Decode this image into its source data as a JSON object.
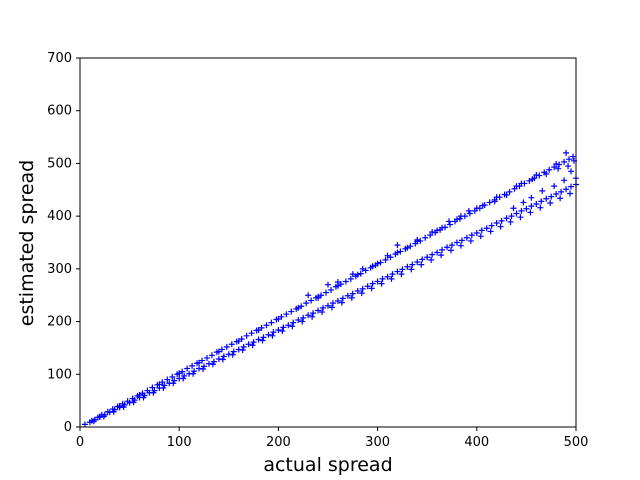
{
  "chart_data": {
    "type": "scatter",
    "title": "",
    "xlabel": "actual spread",
    "ylabel": "estimated spread",
    "xlim": [
      0,
      500
    ],
    "ylim": [
      0,
      700
    ],
    "xticks": [
      "0",
      "100",
      "200",
      "300",
      "400",
      "500"
    ],
    "yticks": [
      "0",
      "100",
      "200",
      "300",
      "400",
      "500",
      "600",
      "700"
    ],
    "grid": false,
    "legend": "none",
    "marker": "plus",
    "color": "#0000ff",
    "series": [
      {
        "values": [
          [
            5,
            5
          ],
          [
            10,
            9
          ],
          [
            15,
            14
          ],
          [
            20,
            19
          ],
          [
            25,
            23
          ],
          [
            30,
            28
          ],
          [
            35,
            33
          ],
          [
            40,
            37
          ],
          [
            45,
            42
          ],
          [
            50,
            46
          ],
          [
            55,
            51
          ],
          [
            60,
            56
          ],
          [
            65,
            60
          ],
          [
            70,
            65
          ],
          [
            75,
            69
          ],
          [
            80,
            74
          ],
          [
            85,
            79
          ],
          [
            90,
            83
          ],
          [
            95,
            88
          ],
          [
            100,
            92
          ],
          [
            105,
            97
          ],
          [
            110,
            101
          ],
          [
            115,
            106
          ],
          [
            120,
            111
          ],
          [
            125,
            115
          ],
          [
            130,
            120
          ],
          [
            135,
            124
          ],
          [
            140,
            129
          ],
          [
            145,
            134
          ],
          [
            150,
            138
          ],
          [
            155,
            143
          ],
          [
            160,
            147
          ],
          [
            165,
            152
          ],
          [
            170,
            157
          ],
          [
            175,
            161
          ],
          [
            180,
            166
          ],
          [
            185,
            170
          ],
          [
            190,
            175
          ],
          [
            195,
            180
          ],
          [
            200,
            184
          ],
          [
            205,
            189
          ],
          [
            210,
            193
          ],
          [
            215,
            198
          ],
          [
            220,
            203
          ],
          [
            225,
            207
          ],
          [
            230,
            212
          ],
          [
            235,
            216
          ],
          [
            240,
            221
          ],
          [
            245,
            226
          ],
          [
            250,
            230
          ],
          [
            255,
            235
          ],
          [
            260,
            239
          ],
          [
            265,
            244
          ],
          [
            270,
            249
          ],
          [
            275,
            253
          ],
          [
            280,
            258
          ],
          [
            285,
            262
          ],
          [
            290,
            267
          ],
          [
            295,
            272
          ],
          [
            300,
            276
          ],
          [
            305,
            281
          ],
          [
            310,
            285
          ],
          [
            315,
            290
          ],
          [
            320,
            295
          ],
          [
            325,
            299
          ],
          [
            330,
            304
          ],
          [
            335,
            308
          ],
          [
            340,
            313
          ],
          [
            345,
            318
          ],
          [
            350,
            322
          ],
          [
            355,
            327
          ],
          [
            360,
            331
          ],
          [
            365,
            336
          ],
          [
            370,
            341
          ],
          [
            375,
            345
          ],
          [
            380,
            350
          ],
          [
            385,
            354
          ],
          [
            390,
            359
          ],
          [
            395,
            364
          ],
          [
            400,
            368
          ],
          [
            405,
            373
          ],
          [
            410,
            377
          ],
          [
            415,
            382
          ],
          [
            420,
            387
          ],
          [
            425,
            391
          ],
          [
            430,
            396
          ],
          [
            435,
            400
          ],
          [
            440,
            405
          ],
          [
            445,
            410
          ],
          [
            450,
            414
          ],
          [
            455,
            419
          ],
          [
            460,
            423
          ],
          [
            465,
            428
          ],
          [
            470,
            433
          ],
          [
            475,
            437
          ],
          [
            480,
            442
          ],
          [
            485,
            446
          ],
          [
            490,
            451
          ],
          [
            495,
            456
          ],
          [
            500,
            460
          ],
          [
            12,
            12
          ],
          [
            18,
            18
          ],
          [
            22,
            23
          ],
          [
            28,
            29
          ],
          [
            33,
            34
          ],
          [
            38,
            39
          ],
          [
            43,
            44
          ],
          [
            48,
            49
          ],
          [
            53,
            54
          ],
          [
            58,
            59
          ],
          [
            63,
            64
          ],
          [
            68,
            69
          ],
          [
            73,
            75
          ],
          [
            78,
            80
          ],
          [
            83,
            85
          ],
          [
            88,
            90
          ],
          [
            93,
            95
          ],
          [
            98,
            100
          ],
          [
            103,
            105
          ],
          [
            108,
            111
          ],
          [
            113,
            116
          ],
          [
            118,
            121
          ],
          [
            123,
            126
          ],
          [
            128,
            131
          ],
          [
            133,
            136
          ],
          [
            138,
            142
          ],
          [
            143,
            147
          ],
          [
            148,
            152
          ],
          [
            153,
            157
          ],
          [
            158,
            162
          ],
          [
            163,
            167
          ],
          [
            168,
            173
          ],
          [
            173,
            178
          ],
          [
            178,
            183
          ],
          [
            183,
            188
          ],
          [
            188,
            193
          ],
          [
            193,
            198
          ],
          [
            198,
            204
          ],
          [
            203,
            209
          ],
          [
            208,
            214
          ],
          [
            213,
            219
          ],
          [
            218,
            224
          ],
          [
            223,
            229
          ],
          [
            228,
            235
          ],
          [
            233,
            240
          ],
          [
            238,
            245
          ],
          [
            243,
            250
          ],
          [
            248,
            255
          ],
          [
            253,
            260
          ],
          [
            258,
            266
          ],
          [
            263,
            271
          ],
          [
            268,
            276
          ],
          [
            273,
            281
          ],
          [
            278,
            286
          ],
          [
            283,
            291
          ],
          [
            288,
            297
          ],
          [
            293,
            302
          ],
          [
            298,
            307
          ],
          [
            303,
            312
          ],
          [
            308,
            317
          ],
          [
            313,
            322
          ],
          [
            318,
            328
          ],
          [
            323,
            333
          ],
          [
            328,
            338
          ],
          [
            333,
            343
          ],
          [
            338,
            348
          ],
          [
            343,
            353
          ],
          [
            348,
            359
          ],
          [
            353,
            364
          ],
          [
            358,
            369
          ],
          [
            363,
            374
          ],
          [
            368,
            379
          ],
          [
            373,
            384
          ],
          [
            378,
            390
          ],
          [
            383,
            395
          ],
          [
            388,
            400
          ],
          [
            393,
            405
          ],
          [
            398,
            410
          ],
          [
            403,
            415
          ],
          [
            408,
            421
          ],
          [
            413,
            426
          ],
          [
            418,
            431
          ],
          [
            423,
            436
          ],
          [
            428,
            441
          ],
          [
            433,
            446
          ],
          [
            438,
            452
          ],
          [
            443,
            457
          ],
          [
            448,
            462
          ],
          [
            453,
            467
          ],
          [
            458,
            472
          ],
          [
            463,
            477
          ],
          [
            468,
            483
          ],
          [
            473,
            488
          ],
          [
            478,
            493
          ],
          [
            483,
            498
          ],
          [
            488,
            503
          ],
          [
            493,
            508
          ],
          [
            497,
            513
          ],
          [
            14,
            11
          ],
          [
            24,
            20
          ],
          [
            34,
            29
          ],
          [
            44,
            38
          ],
          [
            54,
            47
          ],
          [
            64,
            56
          ],
          [
            74,
            65
          ],
          [
            84,
            74
          ],
          [
            94,
            83
          ],
          [
            104,
            92
          ],
          [
            114,
            101
          ],
          [
            124,
            110
          ],
          [
            134,
            119
          ],
          [
            144,
            128
          ],
          [
            154,
            137
          ],
          [
            164,
            146
          ],
          [
            174,
            155
          ],
          [
            184,
            164
          ],
          [
            194,
            173
          ],
          [
            204,
            182
          ],
          [
            214,
            191
          ],
          [
            224,
            200
          ],
          [
            234,
            209
          ],
          [
            244,
            218
          ],
          [
            254,
            227
          ],
          [
            264,
            236
          ],
          [
            274,
            245
          ],
          [
            284,
            254
          ],
          [
            294,
            263
          ],
          [
            304,
            272
          ],
          [
            314,
            281
          ],
          [
            324,
            290
          ],
          [
            334,
            299
          ],
          [
            344,
            308
          ],
          [
            354,
            317
          ],
          [
            364,
            326
          ],
          [
            374,
            335
          ],
          [
            384,
            344
          ],
          [
            394,
            353
          ],
          [
            404,
            362
          ],
          [
            414,
            371
          ],
          [
            424,
            380
          ],
          [
            434,
            389
          ],
          [
            444,
            398
          ],
          [
            454,
            407
          ],
          [
            464,
            416
          ],
          [
            474,
            425
          ],
          [
            484,
            434
          ],
          [
            494,
            443
          ],
          [
            20,
            20
          ],
          [
            40,
            40
          ],
          [
            60,
            61
          ],
          [
            80,
            81
          ],
          [
            100,
            102
          ],
          [
            120,
            122
          ],
          [
            140,
            143
          ],
          [
            160,
            163
          ],
          [
            180,
            184
          ],
          [
            200,
            205
          ],
          [
            220,
            226
          ],
          [
            240,
            247
          ],
          [
            260,
            268
          ],
          [
            280,
            289
          ],
          [
            300,
            310
          ],
          [
            320,
            331
          ],
          [
            340,
            352
          ],
          [
            360,
            373
          ],
          [
            380,
            394
          ],
          [
            400,
            415
          ],
          [
            420,
            436
          ],
          [
            440,
            457
          ],
          [
            460,
            478
          ],
          [
            480,
            499
          ],
          [
            230,
            250
          ],
          [
            240,
            245
          ],
          [
            250,
            270
          ],
          [
            260,
            275
          ],
          [
            275,
            290
          ],
          [
            285,
            300
          ],
          [
            295,
            305
          ],
          [
            310,
            325
          ],
          [
            320,
            345
          ],
          [
            330,
            340
          ],
          [
            340,
            355
          ],
          [
            355,
            370
          ],
          [
            365,
            378
          ],
          [
            372,
            390
          ],
          [
            384,
            400
          ],
          [
            392,
            410
          ],
          [
            406,
            420
          ],
          [
            418,
            428
          ],
          [
            430,
            440
          ],
          [
            445,
            462
          ],
          [
            456,
            470
          ],
          [
            470,
            480
          ],
          [
            482,
            490
          ],
          [
            492,
            495
          ],
          [
            498,
            505
          ],
          [
            437,
            415
          ],
          [
            447,
            426
          ],
          [
            455,
            435
          ],
          [
            466,
            448
          ],
          [
            478,
            457
          ],
          [
            488,
            468
          ],
          [
            495,
            485
          ],
          [
            500,
            472
          ],
          [
            490,
            520
          ]
        ]
      }
    ]
  }
}
